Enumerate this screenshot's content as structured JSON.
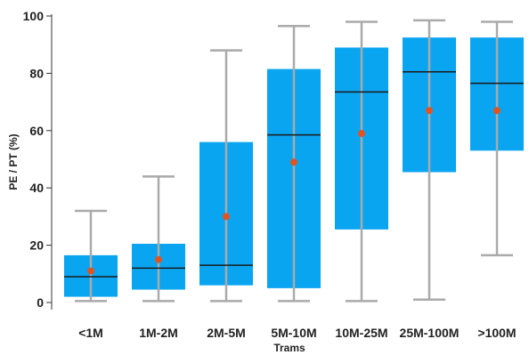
{
  "chart_data": {
    "type": "boxplot",
    "title": "",
    "xlabel": "Trams",
    "ylabel": "PE / PT (%)",
    "ylim": [
      0,
      100
    ],
    "yticks": [
      0,
      20,
      40,
      60,
      80,
      100
    ],
    "grid": false,
    "legend": "none",
    "colors": {
      "box": "#0aa5f0",
      "whisker": "#aaaaaa",
      "median": "#1a1a1a",
      "mean": "#e2541f",
      "axis": "#333333"
    },
    "categories": [
      "<1M",
      "1M-2M",
      "2M-5M",
      "5M-10M",
      "10M-25M",
      "25M-100M",
      ">100M"
    ],
    "boxes": [
      {
        "min": 0.5,
        "q1": 2.0,
        "median": 9.0,
        "q3": 16.5,
        "max": 32.0,
        "mean": 11.0
      },
      {
        "min": 0.5,
        "q1": 4.5,
        "median": 12.0,
        "q3": 20.5,
        "max": 44.0,
        "mean": 15.0
      },
      {
        "min": 0.5,
        "q1": 6.0,
        "median": 13.0,
        "q3": 56.0,
        "max": 88.0,
        "mean": 30.0
      },
      {
        "min": 0.5,
        "q1": 5.0,
        "median": 58.5,
        "q3": 81.5,
        "max": 96.5,
        "mean": 49.0
      },
      {
        "min": 0.5,
        "q1": 25.5,
        "median": 73.5,
        "q3": 89.0,
        "max": 98.0,
        "mean": 59.0
      },
      {
        "min": 1.0,
        "q1": 45.5,
        "median": 80.5,
        "q3": 92.5,
        "max": 98.5,
        "mean": 67.0
      },
      {
        "min": 16.5,
        "q1": 53.0,
        "median": 76.5,
        "q3": 92.5,
        "max": 98.0,
        "mean": 67.0
      }
    ]
  }
}
